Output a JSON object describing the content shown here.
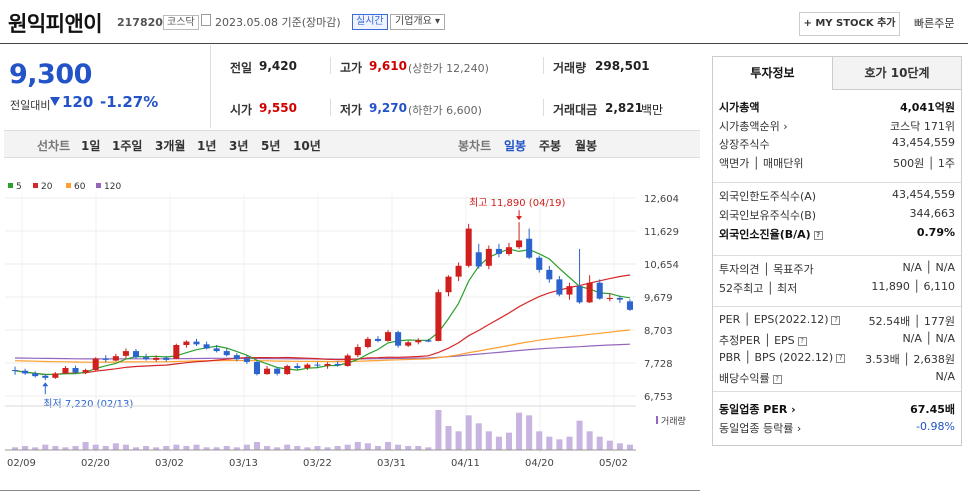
{
  "header": {
    "title": "원익피앤이",
    "code": "217820",
    "market": "코스닥",
    "date": "2023.05.08 기준(장마감)",
    "realtime": "실시간",
    "company_overview": "기업개요 ▾",
    "my_stock": "+ MY STOCK 추가",
    "quick_order": "빠른주문"
  },
  "price": {
    "current": "9,300",
    "change_label": "전일대비",
    "change": "120",
    "change_pct": "-1.27%"
  },
  "quote": {
    "prev_label": "전일",
    "prev": "9,420",
    "high_label": "고가",
    "high": "9,610",
    "upper_limit": "(상한가 12,240)",
    "volume_label": "거래량",
    "volume": "298,501",
    "open_label": "시가",
    "open": "9,550",
    "low_label": "저가",
    "low": "9,270",
    "lower_limit": "(하한가 6,600)",
    "amount_label": "거래대금",
    "amount": "2,821",
    "amount_unit": "백만"
  },
  "periods": {
    "line_chart": "선차트",
    "items": [
      "1일",
      "1주일",
      "3개월",
      "1년",
      "3년",
      "5년",
      "10년"
    ],
    "candle_chart": "봉차트",
    "candle_items": [
      "일봉",
      "주봉",
      "월봉"
    ]
  },
  "chart_data": {
    "type": "candlestick",
    "legend": [
      {
        "name": "5",
        "color": "#2ca02c"
      },
      {
        "name": "20",
        "color": "#d62728"
      },
      {
        "name": "60",
        "color": "#ff9f2e"
      },
      {
        "name": "120",
        "color": "#9467bd"
      }
    ],
    "y_ticks": [
      "12,604",
      "11,629",
      "10,654",
      "9,679",
      "8,703",
      "7,728",
      "6,753"
    ],
    "ylim": [
      6753,
      12604
    ],
    "x_labels": [
      "02/09",
      "02/20",
      "03/02",
      "03/13",
      "03/22",
      "03/31",
      "04/11",
      "04/20",
      "05/02"
    ],
    "high_annotation": "최고 11,890 (04/19)",
    "low_annotation": "최저 7,220 (02/13)",
    "volume_label": "거래량",
    "candles": [
      [
        7520,
        7620,
        7380,
        7500
      ],
      [
        7500,
        7560,
        7380,
        7420
      ],
      [
        7420,
        7480,
        7300,
        7340
      ],
      [
        7350,
        7400,
        7220,
        7290
      ],
      [
        7290,
        7460,
        7260,
        7420
      ],
      [
        7420,
        7640,
        7400,
        7580
      ],
      [
        7580,
        7650,
        7420,
        7450
      ],
      [
        7450,
        7560,
        7400,
        7520
      ],
      [
        7520,
        7900,
        7480,
        7860
      ],
      [
        7860,
        7960,
        7750,
        7820
      ],
      [
        7800,
        8000,
        7780,
        7930
      ],
      [
        7940,
        8160,
        7860,
        8080
      ],
      [
        8080,
        8140,
        7860,
        7900
      ],
      [
        7900,
        8000,
        7800,
        7840
      ],
      [
        7820,
        7950,
        7770,
        7880
      ],
      [
        7880,
        7940,
        7770,
        7820
      ],
      [
        7850,
        8300,
        7840,
        8260
      ],
      [
        8260,
        8400,
        8180,
        8360
      ],
      [
        8360,
        8440,
        8230,
        8280
      ],
      [
        8280,
        8360,
        8130,
        8160
      ],
      [
        8160,
        8260,
        8040,
        8080
      ],
      [
        8080,
        8160,
        7920,
        7960
      ],
      [
        7960,
        8020,
        7780,
        7840
      ],
      [
        7860,
        7950,
        7700,
        7760
      ],
      [
        7760,
        7790,
        7360,
        7400
      ],
      [
        7400,
        7640,
        7380,
        7560
      ],
      [
        7560,
        7600,
        7360,
        7410
      ],
      [
        7400,
        7680,
        7380,
        7640
      ],
      [
        7640,
        7720,
        7540,
        7580
      ],
      [
        7580,
        7720,
        7520,
        7680
      ],
      [
        7680,
        7760,
        7600,
        7650
      ],
      [
        7650,
        7750,
        7560,
        7700
      ],
      [
        7700,
        7780,
        7620,
        7660
      ],
      [
        7640,
        8000,
        7620,
        7950
      ],
      [
        7960,
        8280,
        7900,
        8200
      ],
      [
        8200,
        8500,
        8160,
        8440
      ],
      [
        8440,
        8520,
        8340,
        8380
      ],
      [
        8380,
        8700,
        8360,
        8640
      ],
      [
        8640,
        8680,
        8180,
        8240
      ],
      [
        8240,
        8380,
        8200,
        8340
      ],
      [
        8340,
        8460,
        8280,
        8400
      ],
      [
        8400,
        8440,
        8340,
        8360
      ],
      [
        8380,
        9900,
        8370,
        9820
      ],
      [
        9820,
        10320,
        9700,
        10280
      ],
      [
        10280,
        10700,
        10150,
        10600
      ],
      [
        10600,
        11840,
        10550,
        11700
      ],
      [
        11000,
        11250,
        10520,
        10580
      ],
      [
        10600,
        11200,
        10500,
        11100
      ],
      [
        11100,
        11250,
        10850,
        10950
      ],
      [
        10950,
        11280,
        10900,
        11150
      ],
      [
        11150,
        11890,
        11100,
        11350
      ],
      [
        11400,
        11700,
        10800,
        10840
      ],
      [
        10840,
        10900,
        10400,
        10480
      ],
      [
        10480,
        10600,
        10100,
        10200
      ],
      [
        10200,
        10300,
        9700,
        9750
      ],
      [
        9750,
        10100,
        9600,
        10000
      ],
      [
        10000,
        11100,
        9480,
        9520
      ],
      [
        9520,
        10320,
        9500,
        10100
      ],
      [
        10100,
        10200,
        9600,
        9630
      ],
      [
        9630,
        9780,
        9550,
        9650
      ],
      [
        9650,
        9720,
        9500,
        9600
      ],
      [
        9550,
        9610,
        9270,
        9300
      ]
    ],
    "volume": [
      2,
      3,
      2,
      4,
      3,
      2,
      3,
      6,
      4,
      3,
      5,
      4,
      2,
      3,
      2,
      3,
      4,
      3,
      4,
      2,
      2,
      3,
      2,
      4,
      6,
      3,
      2,
      4,
      3,
      2,
      3,
      2,
      3,
      4,
      6,
      5,
      3,
      6,
      4,
      3,
      3,
      2,
      30,
      18,
      14,
      26,
      20,
      14,
      10,
      13,
      28,
      26,
      14,
      10,
      8,
      10,
      22,
      14,
      10,
      7,
      5,
      4
    ]
  },
  "info": {
    "tab_invest": "투자정보",
    "tab_hoga": "호가 10단계",
    "rows1": [
      {
        "label": "시가총액",
        "value": "4,041억원",
        "bold": true
      },
      {
        "label": "시가총액순위 ›",
        "value": "코스닥 171위"
      },
      {
        "label": "상장주식수",
        "value": "43,454,559"
      },
      {
        "label": "액면가 │ 매매단위",
        "value": "500원 │ 1주"
      }
    ],
    "rows2": [
      {
        "label": "외국인한도주식수(A)",
        "value": "43,454,559"
      },
      {
        "label": "외국인보유주식수(B)",
        "value": "344,663"
      },
      {
        "label": "외국인소진율(B/A)",
        "value": "0.79%",
        "bold": true
      }
    ],
    "rows3": [
      {
        "label": "투자의견 │ 목표주가",
        "value": "N/A │ N/A"
      },
      {
        "label": "52주최고 │ 최저",
        "value": "11,890 │ 6,110"
      }
    ],
    "rows4": [
      {
        "label": "PER │ EPS(2022.12)",
        "value": "52.54배 │ 177원"
      },
      {
        "label": "추정PER │ EPS",
        "value": "N/A │ N/A"
      },
      {
        "label": "PBR │ BPS (2022.12)",
        "value": "3.53배 │ 2,638원"
      },
      {
        "label": "배당수익률",
        "value": "N/A"
      }
    ],
    "rows5": [
      {
        "label": "동일업종 PER ›",
        "value": "67.45배",
        "bold": true
      },
      {
        "label": "동일업종 등락률 ›",
        "value": "-0.98%",
        "blue": true
      }
    ]
  }
}
